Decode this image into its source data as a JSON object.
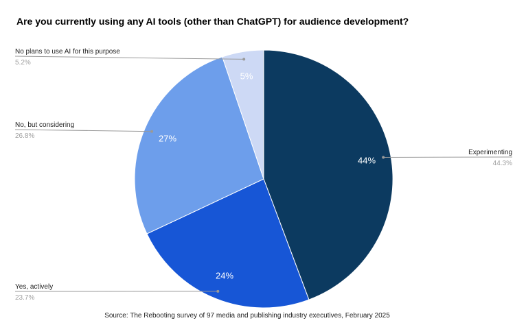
{
  "title": "Are you currently using any AI tools (other than ChatGPT) for audience development?",
  "source": "Source: The Rebooting survey of 97 media and publishing industry executives, February 2025",
  "chart_data": {
    "type": "pie",
    "title": "Are you currently using any AI tools (other than ChatGPT) for audience development?",
    "direction": "clockwise",
    "start_angle_deg": 0,
    "legend_position": "none",
    "slices": [
      {
        "label": "Experimenting",
        "value": 44.3,
        "pct_label": "44.3%",
        "slice_label": "44%",
        "color": "#0c3a60"
      },
      {
        "label": "Yes, actively",
        "value": 23.7,
        "pct_label": "23.7%",
        "slice_label": "24%",
        "color": "#1756d6"
      },
      {
        "label": "No, but considering",
        "value": 26.8,
        "pct_label": "26.8%",
        "slice_label": "27%",
        "color": "#6d9eeb"
      },
      {
        "label": "No plans to use AI for this purpose",
        "value": 5.2,
        "pct_label": "5.2%",
        "slice_label": "5%",
        "color": "#cdd9f5"
      }
    ],
    "slice_label_color": "#ffffff",
    "annotation_label_color": "#222222",
    "annotation_value_color": "#9e9e9e",
    "leader_line_color": "#999999",
    "background_color": "#ffffff"
  }
}
